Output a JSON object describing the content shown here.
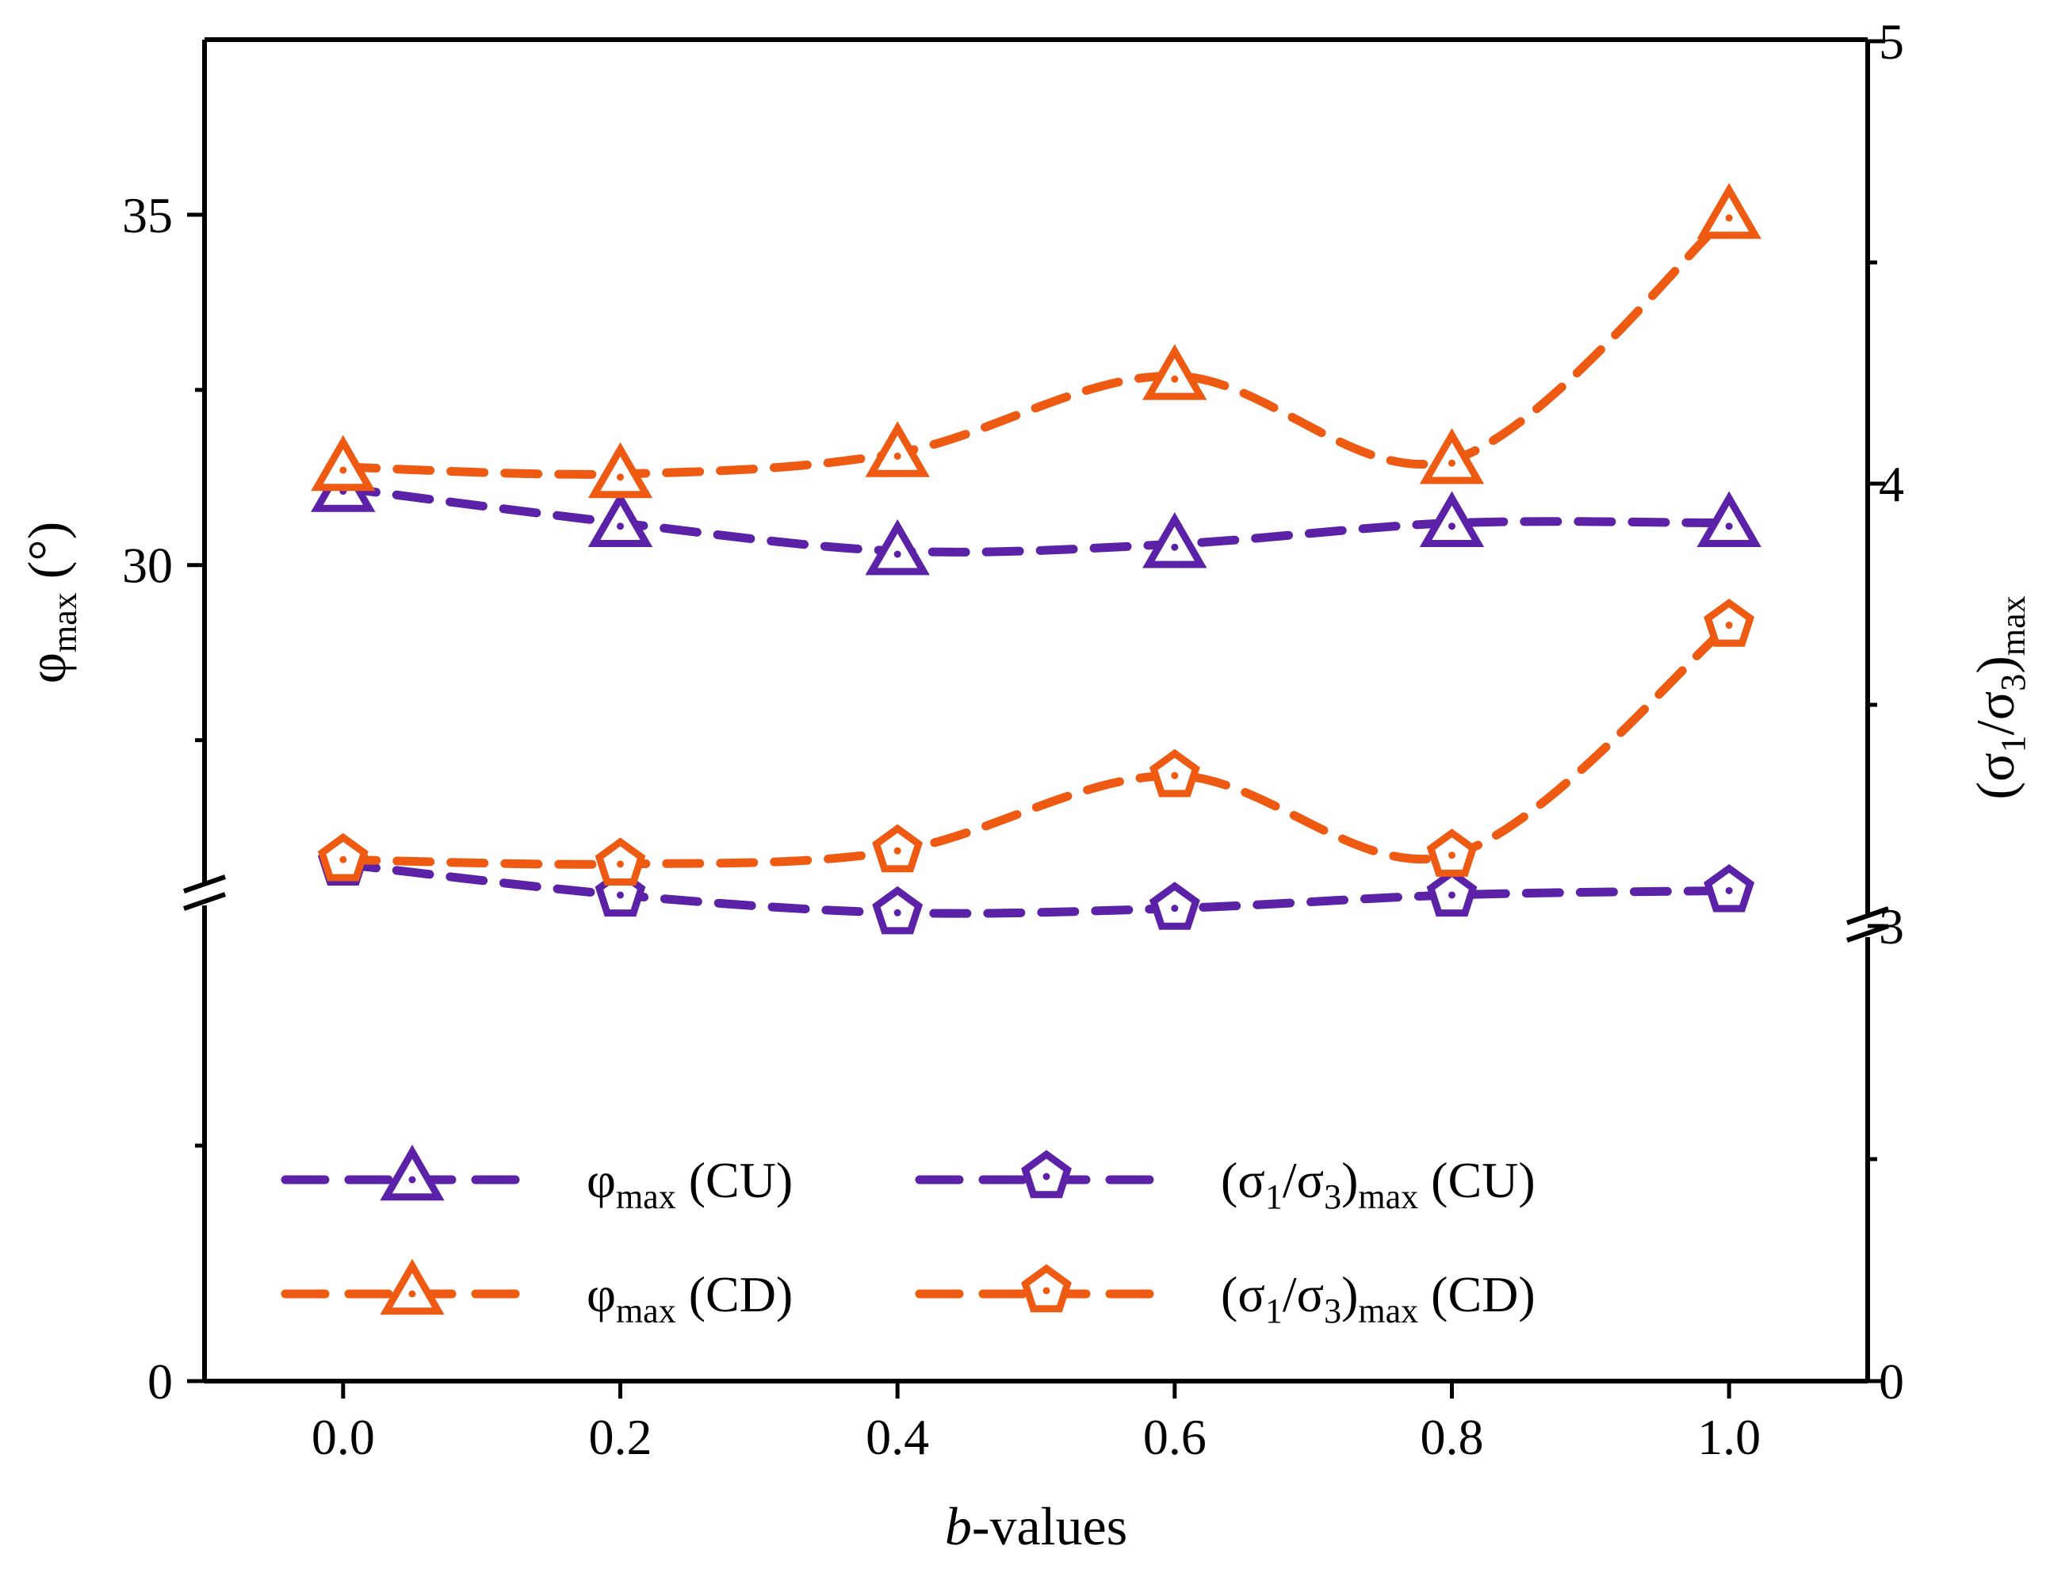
{
  "chart_data": {
    "type": "line",
    "x": [
      0.0,
      0.2,
      0.4,
      0.6,
      0.8,
      1.0
    ],
    "x_tick_labels": [
      "0.0",
      "0.2",
      "0.4",
      "0.6",
      "0.8",
      "1.0"
    ],
    "xlim": [
      -0.1,
      1.1
    ],
    "xlabel": {
      "italic": "b",
      "rest": "-values"
    },
    "ylabel_left": {
      "main": "φ",
      "sub": "max",
      "unit": " (°)"
    },
    "ylabel_right": {
      "open": "(σ",
      "sub1": "1",
      "mid": "/σ",
      "sub3": "3",
      "close": ")",
      "submax": "max"
    },
    "y_left": {
      "broken": true,
      "tick_labels": [
        "0",
        "30",
        "35"
      ],
      "lower_range": [
        0,
        20
      ],
      "upper_range": [
        25.3,
        37.5
      ]
    },
    "y_right": {
      "broken": true,
      "tick_labels": [
        "0",
        "3",
        "4",
        "5"
      ],
      "lower_range": [
        0,
        3
      ],
      "upper_range": [
        3,
        5
      ]
    },
    "series": [
      {
        "label": {
          "main": "φ",
          "sub": "max",
          "tail": " (CU)"
        },
        "axis": "left",
        "marker": "triangle",
        "color": "#5B21A6",
        "values": [
          31.1,
          30.6,
          30.2,
          30.3,
          30.6,
          30.6
        ]
      },
      {
        "label": {
          "main": "φ",
          "sub": "max",
          "tail": " (CD)"
        },
        "axis": "left",
        "marker": "triangle",
        "color": "#EE5A12",
        "values": [
          31.4,
          31.3,
          31.6,
          32.7,
          31.5,
          35.0
        ]
      },
      {
        "label": {
          "open": "(σ",
          "sub1": "1",
          "mid": "/σ",
          "sub3": "3",
          "close": ")",
          "submax": "max",
          "tail": " (CU)"
        },
        "axis": "right",
        "marker": "pentagon",
        "color": "#5B21A6",
        "values": [
          3.14,
          3.07,
          3.03,
          3.04,
          3.07,
          3.08
        ]
      },
      {
        "label": {
          "open": "(σ",
          "sub1": "1",
          "mid": "/σ",
          "sub3": "3",
          "close": ")",
          "submax": "max",
          "tail": " (CD)"
        },
        "axis": "right",
        "marker": "pentagon",
        "color": "#EE5A12",
        "values": [
          3.15,
          3.14,
          3.17,
          3.34,
          3.16,
          3.68
        ]
      }
    ],
    "legend_placement": "lower-left",
    "grid": false
  }
}
